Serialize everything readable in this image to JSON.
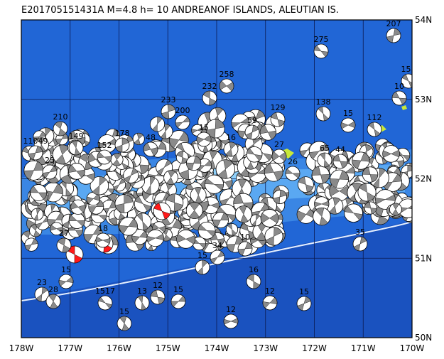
{
  "title": "E201705151431A M=4.8 h= 10 ANDREANOF ISLANDS, ALEUTIAN IS.",
  "lon_labels": [
    "178W",
    "177W",
    "176W",
    "175W",
    "174W",
    "173W",
    "172W",
    "171W",
    "170W"
  ],
  "lat_labels": [
    "54N",
    "53N",
    "52N",
    "51N",
    "50N"
  ],
  "events": [
    {
      "label": "210"
    },
    {
      "label": "149"
    },
    {
      "label": "178"
    },
    {
      "label": "152"
    },
    {
      "label": "48"
    },
    {
      "label": "233"
    },
    {
      "label": "200"
    },
    {
      "label": "258"
    },
    {
      "label": "232"
    },
    {
      "label": "15"
    },
    {
      "label": "129"
    },
    {
      "label": "138"
    },
    {
      "label": "15"
    },
    {
      "label": "112"
    },
    {
      "label": "275"
    },
    {
      "label": "207"
    },
    {
      "label": "151"
    },
    {
      "label": "27"
    },
    {
      "label": "65"
    },
    {
      "label": "44"
    },
    {
      "label": "26"
    },
    {
      "label": "15"
    },
    {
      "label": "34"
    },
    {
      "label": "10"
    },
    {
      "label": "16"
    },
    {
      "label": "12"
    },
    {
      "label": "15"
    },
    {
      "label": "12"
    },
    {
      "label": "15"
    },
    {
      "label": "12"
    },
    {
      "label": "13"
    },
    {
      "label": "1517"
    },
    {
      "label": "15"
    },
    {
      "label": "23"
    },
    {
      "label": "28"
    },
    {
      "label": "15"
    },
    {
      "label": "35"
    },
    {
      "label": "18"
    },
    {
      "label": "27"
    },
    {
      "label": "11049"
    },
    {
      "label": "59"
    },
    {
      "label": "16"
    },
    {
      "label": "10"
    },
    {
      "label": "25"
    }
  ]
}
